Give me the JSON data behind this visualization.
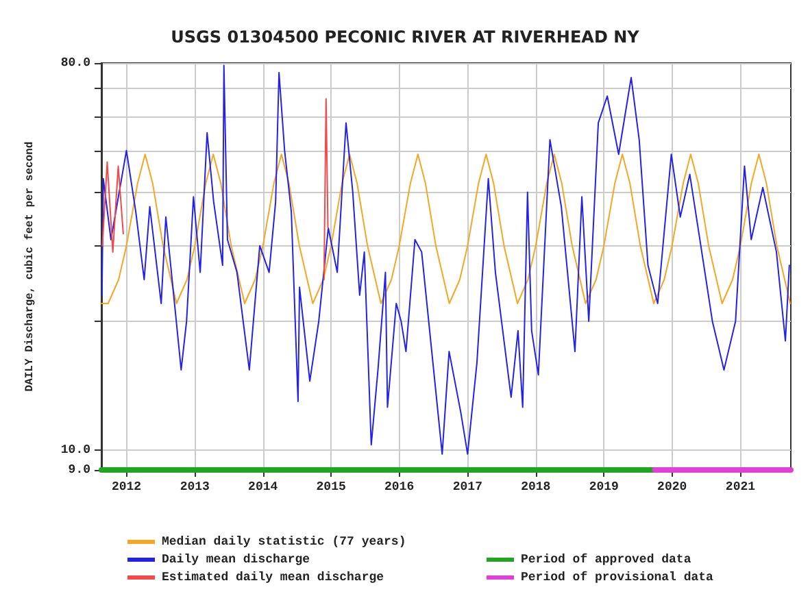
{
  "chart_data": {
    "type": "line",
    "title": "USGS 01304500 PECONIC RIVER AT RIVERHEAD NY",
    "ylabel": "DAILY Discharge, cubic feet per second",
    "log": "y",
    "grid": true,
    "legend": "bottom",
    "marker": "none",
    "line_style": "solid",
    "xlim": [
      "2011-08-20",
      "2021-09-28"
    ],
    "xticks": [
      {
        "value": "2012",
        "label": "2012"
      },
      {
        "value": "2013",
        "label": "2013"
      },
      {
        "value": "2014",
        "label": "2014"
      },
      {
        "value": "2015",
        "label": "2015"
      },
      {
        "value": "2016",
        "label": "2016"
      },
      {
        "value": "2017",
        "label": "2017"
      },
      {
        "value": "2018",
        "label": "2018"
      },
      {
        "value": "2019",
        "label": "2019"
      },
      {
        "value": "2020",
        "label": "2020"
      },
      {
        "value": "2021",
        "label": "2021"
      }
    ],
    "ylim": [
      9,
      80
    ],
    "yticks": [
      {
        "value": 9,
        "label": "9.0"
      },
      {
        "value": 10,
        "label": "10.0"
      },
      {
        "value": 20,
        "label": null
      },
      {
        "value": 30,
        "label": null
      },
      {
        "value": 40,
        "label": null
      },
      {
        "value": 50,
        "label": null
      },
      {
        "value": 60,
        "label": null
      },
      {
        "value": 70,
        "label": null
      },
      {
        "value": 80,
        "label": "80.0"
      }
    ],
    "series": [
      {
        "name": "Median daily statistic (77 years)",
        "color": "#f5a623",
        "x": [
          "2011-08-20",
          "2011-09-25",
          "2011-11-20",
          "2012-01-01",
          "2012-03-01",
          "2012-04-10",
          "2012-05-20",
          "2012-07-15",
          "2012-09-25",
          "2012-11-20",
          "2013-01-01",
          "2013-03-01",
          "2013-04-10",
          "2013-05-20",
          "2013-07-15",
          "2013-09-25",
          "2013-11-20",
          "2014-01-01",
          "2014-03-01",
          "2014-04-10",
          "2014-05-20",
          "2014-07-15",
          "2014-09-25",
          "2014-11-20",
          "2015-01-01",
          "2015-03-01",
          "2015-04-10",
          "2015-05-20",
          "2015-07-15",
          "2015-09-25",
          "2015-11-20",
          "2016-01-01",
          "2016-03-01",
          "2016-04-10",
          "2016-05-20",
          "2016-07-15",
          "2016-09-25",
          "2016-11-20",
          "2017-01-01",
          "2017-03-01",
          "2017-04-10",
          "2017-05-20",
          "2017-07-15",
          "2017-09-25",
          "2017-11-20",
          "2018-01-01",
          "2018-03-01",
          "2018-04-10",
          "2018-05-20",
          "2018-07-15",
          "2018-09-25",
          "2018-11-20",
          "2019-01-01",
          "2019-03-01",
          "2019-04-10",
          "2019-05-20",
          "2019-07-15",
          "2019-09-25",
          "2019-11-20",
          "2020-01-01",
          "2020-03-01",
          "2020-04-10",
          "2020-05-20",
          "2020-07-15",
          "2020-09-25",
          "2020-11-20",
          "2021-01-01",
          "2021-03-01",
          "2021-04-10",
          "2021-05-20",
          "2021-07-15",
          "2021-09-25"
        ],
        "values": [
          22,
          22,
          25,
          30,
          42,
          49,
          42,
          30,
          22,
          25,
          30,
          42,
          49,
          42,
          30,
          22,
          25,
          30,
          42,
          49,
          42,
          30,
          22,
          25,
          30,
          42,
          49,
          42,
          30,
          22,
          25,
          30,
          42,
          49,
          42,
          30,
          22,
          25,
          30,
          42,
          49,
          42,
          30,
          22,
          25,
          30,
          42,
          49,
          42,
          30,
          22,
          25,
          30,
          42,
          49,
          42,
          30,
          22,
          25,
          30,
          42,
          49,
          42,
          30,
          22,
          25,
          30,
          42,
          49,
          42,
          30,
          22
        ]
      },
      {
        "name": "Daily mean discharge",
        "color": "#2323e6",
        "x": [
          "2011-08-23",
          "2011-08-30",
          "2011-10-10",
          "2012-01-01",
          "2012-02-20",
          "2012-04-05",
          "2012-05-05",
          "2012-07-05",
          "2012-07-30",
          "2012-10-20",
          "2012-11-18",
          "2012-12-25",
          "2013-01-30",
          "2013-03-08",
          "2013-04-12",
          "2013-05-30",
          "2013-06-06",
          "2013-06-25",
          "2013-08-15",
          "2013-10-20",
          "2013-12-15",
          "2014-02-03",
          "2014-03-10",
          "2014-03-28",
          "2014-04-27",
          "2014-06-02",
          "2014-07-08",
          "2014-07-16",
          "2014-09-09",
          "2014-10-27",
          "2014-12-17",
          "2015-02-03",
          "2015-03-22",
          "2015-04-27",
          "2015-06-03",
          "2015-06-28",
          "2015-08-04",
          "2015-09-09",
          "2015-10-19",
          "2015-10-30",
          "2015-12-16",
          "2016-01-11",
          "2016-02-06",
          "2016-03-25",
          "2016-04-30",
          "2016-08-18",
          "2016-09-24",
          "2016-11-25",
          "2017-01-01",
          "2017-02-20",
          "2017-04-22",
          "2017-05-30",
          "2017-08-22",
          "2017-09-28",
          "2017-10-23",
          "2017-11-18",
          "2017-12-10",
          "2018-01-15",
          "2018-03-18",
          "2018-05-18",
          "2018-07-30",
          "2018-09-05",
          "2018-10-12",
          "2018-12-02",
          "2019-01-19",
          "2019-03-21",
          "2019-05-27",
          "2019-07-09",
          "2019-08-25",
          "2019-10-16",
          "2019-12-28",
          "2020-02-14",
          "2020-04-05",
          "2020-06-03",
          "2020-08-04",
          "2020-10-05",
          "2020-12-06",
          "2021-01-23",
          "2021-02-28",
          "2021-05-01",
          "2021-07-13",
          "2021-08-30",
          "2021-09-20"
        ],
        "values": [
          23,
          43,
          31,
          50,
          36,
          25,
          37,
          22,
          35,
          15.4,
          20,
          39,
          26,
          55,
          38,
          27,
          79,
          31,
          26,
          15.4,
          30,
          26,
          38,
          76,
          50,
          36,
          13,
          24,
          14.5,
          20,
          33,
          26,
          58,
          40,
          23,
          29,
          10.3,
          15.4,
          26,
          12.6,
          22,
          20,
          17,
          31,
          29,
          9.8,
          17,
          12.3,
          9.8,
          16,
          43,
          26,
          13.3,
          19,
          12.6,
          40,
          19,
          15,
          53,
          37,
          17,
          39,
          20,
          58,
          67,
          49,
          74,
          53,
          27,
          22,
          49,
          35,
          44,
          30,
          20,
          15.4,
          20,
          46,
          31,
          41,
          29,
          18,
          27
        ]
      },
      {
        "name": "Estimated daily mean discharge",
        "color": "#f04a4a",
        "x": [
          "2011-08-25",
          "2011-09-20",
          "2011-10-20",
          "2011-11-18",
          "2011-12-15",
          "2014-11-20",
          "2014-11-24",
          "2014-12-05",
          "2014-12-15"
        ],
        "values": [
          30,
          47,
          29,
          46,
          32,
          null,
          25,
          66,
          33
        ]
      },
      {
        "name": "Period of approved data",
        "color": "#1fa51f",
        "x": [
          "2011-08-20",
          "2019-10-01"
        ],
        "values": [
          9,
          9
        ]
      },
      {
        "name": "Period of provisional data",
        "color": "#e040d8",
        "x": [
          "2019-10-01",
          "2021-09-28"
        ],
        "values": [
          9,
          9
        ]
      }
    ]
  }
}
